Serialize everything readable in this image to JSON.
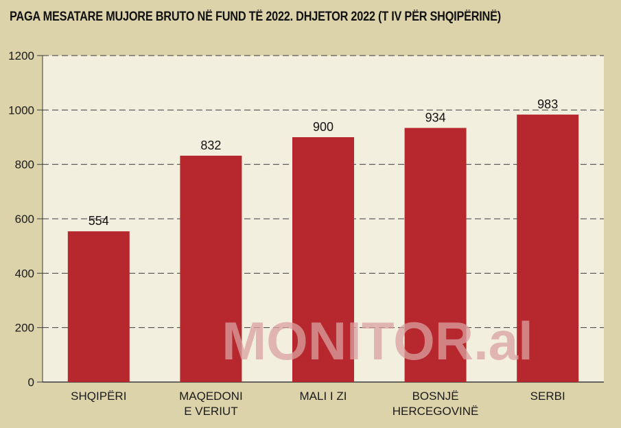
{
  "chart_data": {
    "type": "bar",
    "title": "PAGA MESATARE MUJORE BRUTO NË FUND TË 2022. DHJETOR 2022 (T IV PËR SHQIPËRINË)",
    "categories": [
      [
        "SHQIPËRI"
      ],
      [
        "MAQEDONI",
        "E VERIUT"
      ],
      [
        "MALI I ZI"
      ],
      [
        "BOSNJË",
        "HERCEGOVINË"
      ],
      [
        "SERBI"
      ]
    ],
    "values": [
      554,
      832,
      900,
      934,
      983
    ],
    "value_labels": [
      "554",
      "832",
      "900",
      "934",
      "983"
    ],
    "ylim": [
      0,
      1200
    ],
    "yticks": [
      0,
      200,
      400,
      600,
      800,
      1000,
      1200
    ],
    "ytick_labels": [
      "0",
      "200",
      "400",
      "600",
      "800",
      "1000",
      "1200"
    ],
    "xlabel": "",
    "ylabel": "",
    "grid": true,
    "bar_color": "#b7282e",
    "plot_background": "#f3efdf",
    "page_background": "#dcd3ab"
  },
  "watermark": "MONITOR.al"
}
